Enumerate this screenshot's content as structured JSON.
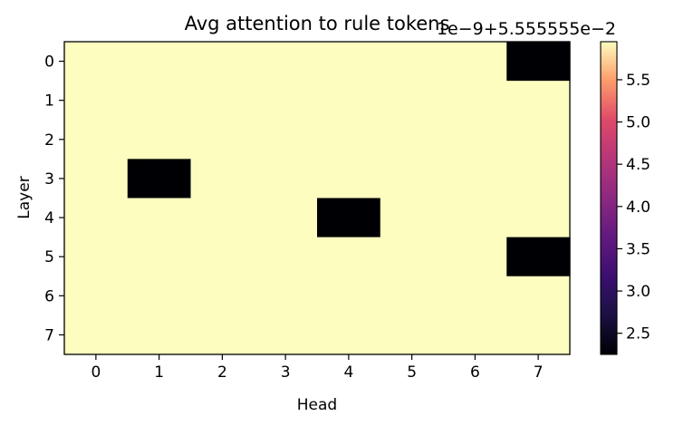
{
  "chart_data": {
    "type": "heatmap",
    "title": "Avg attention to rule tokens",
    "xlabel": "Head",
    "ylabel": "Layer",
    "x_ticks": [
      "0",
      "1",
      "2",
      "3",
      "4",
      "5",
      "6",
      "7"
    ],
    "y_ticks": [
      "0",
      "1",
      "2",
      "3",
      "4",
      "5",
      "6",
      "7"
    ],
    "offset_text": "1e−9+5.555555e−2",
    "colormap": "magma",
    "colorbar": {
      "vmin": 2.25,
      "vmax": 5.95,
      "ticks": [
        2.5,
        3.0,
        3.5,
        4.0,
        4.5,
        5.0,
        5.5
      ],
      "tick_labels": [
        "2.5",
        "3.0",
        "3.5",
        "4.0",
        "4.5",
        "5.0",
        "5.5"
      ]
    },
    "values": [
      [
        5.95,
        5.95,
        5.95,
        5.95,
        5.95,
        5.95,
        5.95,
        2.25
      ],
      [
        5.95,
        5.95,
        5.95,
        5.95,
        5.95,
        5.95,
        5.95,
        5.95
      ],
      [
        5.95,
        5.95,
        5.95,
        5.95,
        5.95,
        5.95,
        5.95,
        5.95
      ],
      [
        5.95,
        2.25,
        5.95,
        5.95,
        5.95,
        5.95,
        5.95,
        5.95
      ],
      [
        5.95,
        5.95,
        5.95,
        5.95,
        2.25,
        5.95,
        5.95,
        5.95
      ],
      [
        5.95,
        5.95,
        5.95,
        5.95,
        5.95,
        5.95,
        5.95,
        2.25
      ],
      [
        5.95,
        5.95,
        5.95,
        5.95,
        5.95,
        5.95,
        5.95,
        5.95
      ],
      [
        5.95,
        5.95,
        5.95,
        5.95,
        5.95,
        5.95,
        5.95,
        5.95
      ]
    ]
  }
}
